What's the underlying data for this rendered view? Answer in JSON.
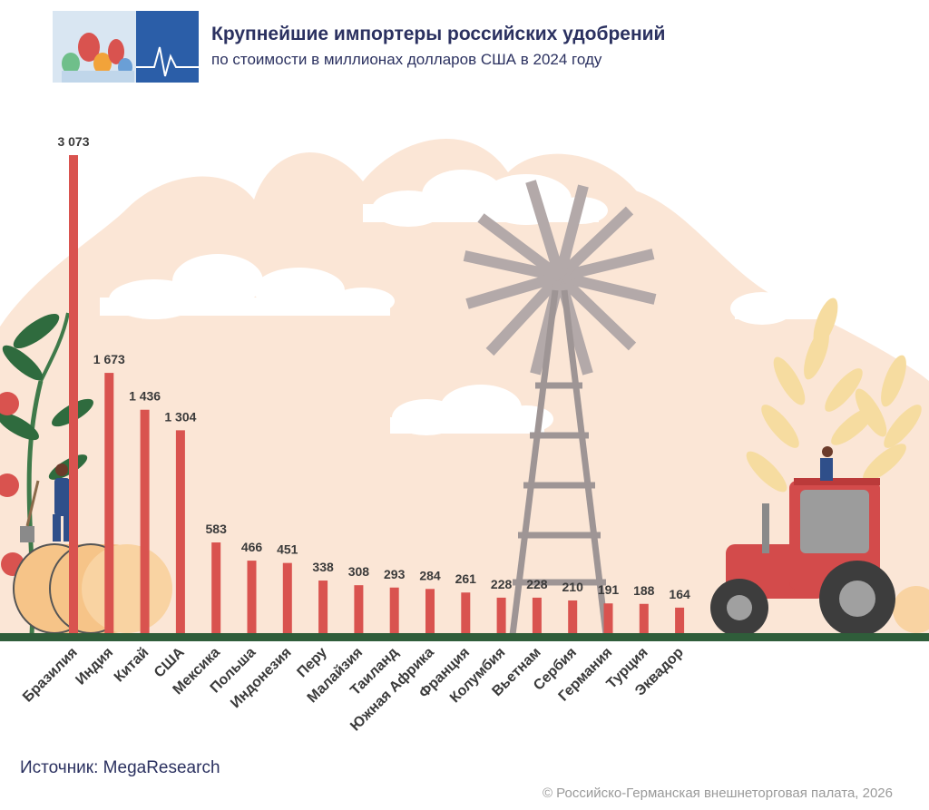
{
  "header": {
    "title": "Крупнейшие импортеры российских удобрений",
    "subtitle": "по стоимости в миллионах долларов США в 2024 году"
  },
  "footer": {
    "source": "Источник: MegaResearch",
    "copyright": "© Российско-Германская внешнеторговая палата, 2026"
  },
  "colors": {
    "bar": "#d9534f",
    "ground": "#2f5d3a",
    "background_shape": "#fbe6d6",
    "title_text": "#2b3160"
  },
  "chart_data": {
    "type": "bar",
    "categories": [
      "Бразилия",
      "Индия",
      "Китай",
      "США",
      "Мексика",
      "Польша",
      "Индонезия",
      "Перу",
      "Малайзия",
      "Таиланд",
      "Южная Африка",
      "Франция",
      "Колумбия",
      "Вьетнам",
      "Сербия",
      "Германия",
      "Турция",
      "Эквадор"
    ],
    "values": [
      3073,
      1673,
      1436,
      1304,
      583,
      466,
      451,
      338,
      308,
      293,
      284,
      261,
      228,
      228,
      210,
      191,
      188,
      164
    ],
    "value_labels": [
      "3 073",
      "1 673",
      "1 436",
      "1 304",
      "583",
      "466",
      "451",
      "338",
      "308",
      "293",
      "284",
      "261",
      "228",
      "228",
      "210",
      "191",
      "188",
      "164"
    ],
    "title": "Крупнейшие импортеры российских удобрений",
    "xlabel": "",
    "ylabel": "",
    "ylim": [
      0,
      3073
    ],
    "grid": false,
    "legend": "none"
  }
}
